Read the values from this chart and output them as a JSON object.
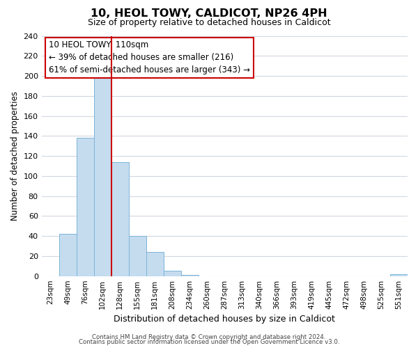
{
  "title": "10, HEOL TOWY, CALDICOT, NP26 4PH",
  "subtitle": "Size of property relative to detached houses in Caldicot",
  "xlabel": "Distribution of detached houses by size in Caldicot",
  "ylabel": "Number of detached properties",
  "bar_labels": [
    "23sqm",
    "49sqm",
    "76sqm",
    "102sqm",
    "128sqm",
    "155sqm",
    "181sqm",
    "208sqm",
    "234sqm",
    "260sqm",
    "287sqm",
    "313sqm",
    "340sqm",
    "366sqm",
    "393sqm",
    "419sqm",
    "445sqm",
    "472sqm",
    "498sqm",
    "525sqm",
    "551sqm"
  ],
  "bar_values": [
    0,
    42,
    138,
    200,
    114,
    40,
    24,
    5,
    1,
    0,
    0,
    0,
    0,
    0,
    0,
    0,
    0,
    0,
    0,
    0,
    2
  ],
  "bar_color": "#c5dcef",
  "bar_edge_color": "#7ab4d8",
  "vline_x": 3.5,
  "vline_color": "#cc0000",
  "annotation_line1": "10 HEOL TOWY: 110sqm",
  "annotation_line2": "← 39% of detached houses are smaller (216)",
  "annotation_line3": "61% of semi-detached houses are larger (343) →",
  "ylim": [
    0,
    240
  ],
  "yticks": [
    0,
    20,
    40,
    60,
    80,
    100,
    120,
    140,
    160,
    180,
    200,
    220,
    240
  ],
  "footer_line1": "Contains HM Land Registry data © Crown copyright and database right 2024.",
  "footer_line2": "Contains public sector information licensed under the Open Government Licence v3.0.",
  "background_color": "#ffffff",
  "grid_color": "#d0d8e0"
}
